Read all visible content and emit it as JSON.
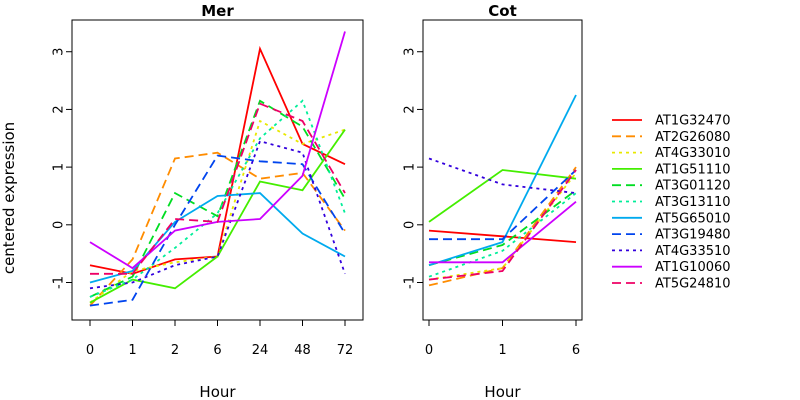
{
  "chart_data": {
    "type": "line",
    "ylabel": "centered expression",
    "legend_position": "right",
    "yticks": [
      -1,
      0,
      1,
      2,
      3
    ],
    "ylim": [
      -1.65,
      3.55
    ],
    "series_styles": [
      {
        "name": "AT1G32470",
        "color": "#ff0000",
        "dash": "solid"
      },
      {
        "name": "AT2G26080",
        "color": "#ff8c00",
        "dash": "dashed"
      },
      {
        "name": "AT4G33010",
        "color": "#e8e800",
        "dash": "dotted"
      },
      {
        "name": "AT1G51110",
        "color": "#44ee00",
        "dash": "solid"
      },
      {
        "name": "AT3G01120",
        "color": "#00dd22",
        "dash": "dashed"
      },
      {
        "name": "AT3G13110",
        "color": "#00ee99",
        "dash": "dotted"
      },
      {
        "name": "AT5G65010",
        "color": "#00aaee",
        "dash": "solid"
      },
      {
        "name": "AT3G19480",
        "color": "#0044ee",
        "dash": "dashed"
      },
      {
        "name": "AT4G33510",
        "color": "#3300dd",
        "dash": "dotted"
      },
      {
        "name": "AT1G10060",
        "color": "#cc00ff",
        "dash": "solid"
      },
      {
        "name": "AT5G24810",
        "color": "#ee0066",
        "dash": "dashed"
      }
    ],
    "panels": [
      {
        "title": "Mer",
        "xlabel": "Hour",
        "categories": [
          "0",
          "1",
          "2",
          "6",
          "24",
          "48",
          "72"
        ],
        "series": [
          {
            "name": "AT1G32470",
            "values": [
              -0.7,
              -0.85,
              -0.6,
              -0.55,
              3.05,
              1.4,
              1.05
            ]
          },
          {
            "name": "AT2G26080",
            "values": [
              -1.4,
              -0.6,
              1.15,
              1.25,
              0.8,
              0.9,
              -0.1
            ]
          },
          {
            "name": "AT4G33010",
            "values": [
              -1.35,
              -0.8,
              -0.65,
              -0.55,
              1.8,
              1.4,
              1.65
            ]
          },
          {
            "name": "AT1G51110",
            "values": [
              -1.35,
              -0.95,
              -1.1,
              -0.55,
              0.75,
              0.6,
              1.65
            ]
          },
          {
            "name": "AT3G01120",
            "values": [
              -1.25,
              -0.9,
              0.55,
              0.15,
              2.15,
              1.7,
              0.45
            ]
          },
          {
            "name": "AT3G13110",
            "values": [
              -1.25,
              -0.95,
              -0.4,
              0.2,
              1.5,
              2.15,
              0.2
            ]
          },
          {
            "name": "AT5G65010",
            "values": [
              -1.0,
              -0.8,
              0.05,
              0.5,
              0.55,
              -0.15,
              -0.55
            ]
          },
          {
            "name": "AT3G19480",
            "values": [
              -1.4,
              -1.3,
              0.0,
              1.2,
              1.1,
              1.05,
              -0.15
            ]
          },
          {
            "name": "AT4G33510",
            "values": [
              -1.1,
              -1.0,
              -0.7,
              -0.55,
              1.45,
              1.25,
              -0.85
            ]
          },
          {
            "name": "AT1G10060",
            "values": [
              -0.3,
              -0.75,
              -0.1,
              0.05,
              0.1,
              0.85,
              3.35
            ]
          },
          {
            "name": "AT5G24810",
            "values": [
              -0.85,
              -0.85,
              0.1,
              0.05,
              2.1,
              1.8,
              0.55
            ]
          }
        ]
      },
      {
        "title": "Cot",
        "xlabel": "Hour",
        "categories": [
          "0",
          "1",
          "6"
        ],
        "series": [
          {
            "name": "AT1G32470",
            "values": [
              -0.1,
              -0.2,
              -0.3
            ]
          },
          {
            "name": "AT2G26080",
            "values": [
              -1.05,
              -0.75,
              1.0
            ]
          },
          {
            "name": "AT4G33010",
            "values": [
              -0.95,
              -0.75,
              0.9
            ]
          },
          {
            "name": "AT1G51110",
            "values": [
              0.05,
              0.95,
              0.8
            ]
          },
          {
            "name": "AT3G01120",
            "values": [
              -0.7,
              -0.35,
              0.6
            ]
          },
          {
            "name": "AT3G13110",
            "values": [
              -0.9,
              -0.45,
              0.55
            ]
          },
          {
            "name": "AT5G65010",
            "values": [
              -0.7,
              -0.3,
              2.25
            ]
          },
          {
            "name": "AT3G19480",
            "values": [
              -0.25,
              -0.25,
              0.95
            ]
          },
          {
            "name": "AT4G33510",
            "values": [
              1.15,
              0.7,
              0.55
            ]
          },
          {
            "name": "AT1G10060",
            "values": [
              -0.65,
              -0.65,
              0.4
            ]
          },
          {
            "name": "AT5G24810",
            "values": [
              -0.95,
              -0.8,
              0.95
            ]
          }
        ]
      }
    ]
  }
}
